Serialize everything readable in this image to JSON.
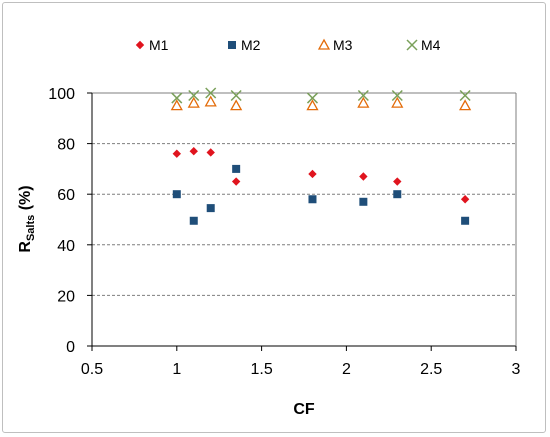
{
  "chart_data": {
    "type": "scatter",
    "title": "",
    "xlabel": "CF",
    "ylabel": {
      "main": "R",
      "subscript": "Salts",
      "unit": " (%)"
    },
    "xlim": [
      0.5,
      3
    ],
    "ylim": [
      0,
      100
    ],
    "x_ticks": [
      "0.5",
      "1",
      "1.5",
      "2",
      "2.5",
      "3"
    ],
    "y_ticks": [
      "0",
      "20",
      "40",
      "60",
      "80",
      "100"
    ],
    "x_tick_values": [
      0.5,
      1,
      1.5,
      2,
      2.5,
      3
    ],
    "y_tick_values": [
      0,
      20,
      40,
      60,
      80,
      100
    ],
    "grid": "horizontal dashed",
    "legend_position": "top",
    "series": [
      {
        "name": "M1",
        "marker": "diamond",
        "color": "#e0141e",
        "x": [
          1.0,
          1.1,
          1.2,
          1.35,
          1.8,
          2.1,
          2.3,
          2.7
        ],
        "y": [
          76,
          77,
          76.5,
          65,
          68,
          67,
          65,
          58
        ]
      },
      {
        "name": "M2",
        "marker": "square",
        "color": "#1f4e79",
        "x": [
          1.0,
          1.1,
          1.2,
          1.35,
          1.8,
          2.1,
          2.3,
          2.7
        ],
        "y": [
          60,
          49.5,
          54.5,
          70,
          58,
          57,
          60,
          49.5
        ]
      },
      {
        "name": "M3",
        "marker": "triangle-open",
        "color": "#e36c0a",
        "x": [
          1.0,
          1.1,
          1.2,
          1.35,
          1.8,
          2.1,
          2.3,
          2.7
        ],
        "y": [
          95,
          96,
          96.5,
          95,
          95,
          96,
          96,
          95
        ]
      },
      {
        "name": "M4",
        "marker": "x",
        "color": "#7aa05a",
        "x": [
          1.0,
          1.1,
          1.2,
          1.35,
          1.8,
          2.1,
          2.3,
          2.7
        ],
        "y": [
          98,
          99,
          100,
          99,
          98,
          99,
          99,
          99
        ]
      }
    ]
  }
}
